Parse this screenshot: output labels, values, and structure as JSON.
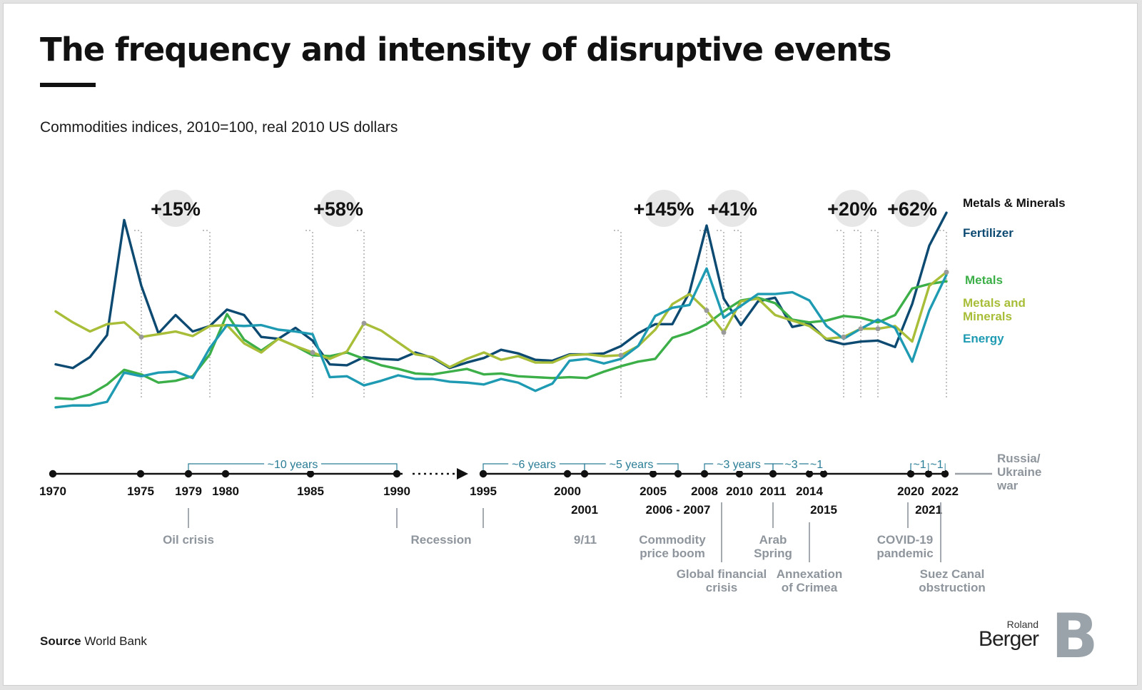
{
  "title": "The frequency and intensity of disruptive events",
  "subtitle": "Commodities indices, 2010=100, real 2010 US dollars",
  "source_label": "Source",
  "source_value": "World Bank",
  "logo": {
    "line1": "Roland",
    "line2": "Berger"
  },
  "colors": {
    "fertilizer": "#0d4a72",
    "metals": "#3caf48",
    "metals_and_minerals": "#a8bd38",
    "energy": "#1e9bb2",
    "event_text": "#8e959c",
    "axis": "#111111",
    "bracket": "#2a7d96"
  },
  "chart_data": {
    "type": "line",
    "title": "The frequency and intensity of disruptive events",
    "ylabel": "",
    "xlabel": "",
    "ylim": [
      0,
      230
    ],
    "x": [
      1970,
      1971,
      1972,
      1973,
      1974,
      1975,
      1976,
      1977,
      1978,
      1979,
      1980,
      1981,
      1982,
      1983,
      1984,
      1985,
      1986,
      1987,
      1988,
      1989,
      1990,
      1991,
      1992,
      1993,
      1994,
      1995,
      1996,
      1997,
      1998,
      1999,
      2000,
      2001,
      2002,
      2003,
      2004,
      2005,
      2006,
      2007,
      2008,
      2009,
      2010,
      2011,
      2012,
      2013,
      2014,
      2015,
      2016,
      2017,
      2018,
      2019,
      2020,
      2021,
      2022
    ],
    "series": [
      {
        "name": "Fertilizer",
        "key": "fertilizer",
        "values": [
          62,
          58,
          70,
          94,
          220,
          148,
          96,
          116,
          98,
          104,
          122,
          116,
          92,
          90,
          102,
          88,
          62,
          61,
          70,
          68,
          67,
          75,
          69,
          58,
          64,
          69,
          78,
          74,
          67,
          66,
          73,
          73,
          74,
          82,
          96,
          106,
          106,
          141,
          214,
          134,
          105,
          131,
          135,
          103,
          107,
          89,
          84,
          87,
          88,
          81,
          128,
          192,
          228
        ]
      },
      {
        "name": "Metals",
        "key": "metals",
        "values": [
          25,
          24,
          29,
          40,
          56,
          51,
          42,
          44,
          49,
          73,
          117,
          89,
          77,
          90,
          82,
          72,
          71,
          75,
          68,
          61,
          57,
          52,
          51,
          54,
          57,
          51,
          52,
          49,
          48,
          47,
          48,
          47,
          54,
          60,
          65,
          68,
          91,
          97,
          106,
          120,
          132,
          135,
          129,
          111,
          108,
          110,
          115,
          113,
          108,
          116,
          145,
          150,
          153
        ]
      },
      {
        "name": "Metals and Minerals",
        "key": "metals_and_minerals",
        "values": [
          120,
          108,
          98,
          106,
          108,
          92,
          95,
          98,
          93,
          104,
          105,
          85,
          75,
          90,
          82,
          75,
          68,
          76,
          107,
          99,
          86,
          73,
          70,
          59,
          68,
          75,
          67,
          71,
          64,
          64,
          72,
          73,
          71,
          72,
          82,
          100,
          128,
          139,
          121,
          97,
          131,
          134,
          116,
          110,
          104,
          90,
          92,
          101,
          101,
          104,
          87,
          148,
          163
        ]
      },
      {
        "name": "Energy",
        "key": "energy",
        "values": [
          15,
          17,
          17,
          21,
          53,
          49,
          53,
          54,
          47,
          80,
          105,
          104,
          105,
          100,
          98,
          95,
          48,
          49,
          39,
          44,
          50,
          46,
          46,
          43,
          42,
          40,
          46,
          42,
          33,
          41,
          66,
          68,
          63,
          68,
          82,
          115,
          124,
          127,
          167,
          113,
          126,
          139,
          139,
          141,
          132,
          104,
          90,
          101,
          111,
          102,
          65,
          121,
          160
        ]
      }
    ],
    "legend": [
      "Metals & Minerals",
      "Fertilizer",
      "Metals",
      "Metals and Minerals",
      "Energy"
    ],
    "increase_labels": [
      {
        "text": "+15%",
        "year_from": 1975,
        "year_to": 1979
      },
      {
        "text": "+58%",
        "year_from": 1985,
        "year_to": 1988
      },
      {
        "text": "+145%",
        "year_from": 2003,
        "year_to": 2008
      },
      {
        "text": "+41%",
        "year_from": 2009,
        "year_to": 2010
      },
      {
        "text": "+20%",
        "year_from": 2016,
        "year_to": 2017
      },
      {
        "text": "+62%",
        "year_from": 2018,
        "year_to": 2022
      }
    ]
  },
  "timeline": {
    "years": [
      {
        "label": "1970",
        "row": 1
      },
      {
        "label": "1975",
        "row": 1
      },
      {
        "label": "1979",
        "row": 1
      },
      {
        "label": "1980",
        "row": 1
      },
      {
        "label": "1985",
        "row": 1
      },
      {
        "label": "1990",
        "row": 1
      },
      {
        "label": "1995",
        "row": 1
      },
      {
        "label": "2000",
        "row": 1
      },
      {
        "label": "2001",
        "row": 2
      },
      {
        "label": "2005",
        "row": 1
      },
      {
        "label": "2006 - 2007",
        "row": 2
      },
      {
        "label": "2008",
        "row": 1
      },
      {
        "label": "2010",
        "row": 1
      },
      {
        "label": "2011",
        "row": 1
      },
      {
        "label": "2014",
        "row": 1
      },
      {
        "label": "2015",
        "row": 2
      },
      {
        "label": "2020",
        "row": 1
      },
      {
        "label": "2021",
        "row": 2
      },
      {
        "label": "2022",
        "row": 1
      }
    ],
    "intervals": [
      "~10 years",
      "~6 years",
      "~5 years",
      "~3 years",
      "~3",
      "~1",
      "~1",
      "~1"
    ],
    "events": [
      {
        "lines": [
          "Oil crisis"
        ]
      },
      {
        "lines": [
          "Recession"
        ]
      },
      {
        "lines": [
          "9/11"
        ]
      },
      {
        "lines": [
          "Commodity",
          "price boom"
        ]
      },
      {
        "lines": [
          "Global financial",
          "crisis"
        ]
      },
      {
        "lines": [
          "Arab",
          "Spring"
        ]
      },
      {
        "lines": [
          "Annexation",
          "of Crimea"
        ]
      },
      {
        "lines": [
          "COVID-19",
          "pandemic"
        ]
      },
      {
        "lines": [
          "Suez Canal",
          "obstruction"
        ]
      },
      {
        "lines": [
          "Russia/",
          "Ukraine",
          "war"
        ]
      }
    ]
  }
}
